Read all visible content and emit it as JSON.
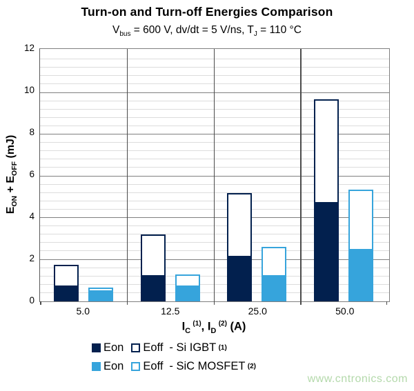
{
  "title": "Turn-on and Turn-off Energies Comparison",
  "subtitle": {
    "p1": "V",
    "sub1": "bus",
    "p2": " = 600 V, dv/dt = 5 V/ns, T",
    "sub2": "J",
    "p3": " = 110 °C"
  },
  "y_axis": {
    "label_parts": {
      "e1": "E",
      "sub1": "ON",
      "plus": " + E",
      "sub2": "OFF",
      "unit": " (mJ)"
    },
    "tick_labels": [
      "0",
      "2",
      "4",
      "6",
      "8",
      "10",
      "12"
    ]
  },
  "x_axis": {
    "label_parts": {
      "i1": "I",
      "sub1": "C",
      "sup1": "(1)",
      "mid": ", I",
      "sub2": "D",
      "sup2": "(2)",
      "unit": " (A)"
    },
    "tick_labels": [
      "5.0",
      "12.5",
      "25.0",
      "50.0"
    ]
  },
  "chart_data": {
    "type": "bar",
    "subtype": "stacked-grouped",
    "categories": [
      5.0,
      12.5,
      25.0,
      50.0
    ],
    "ylim": [
      0,
      12
    ],
    "major_step": 2,
    "minor_step": 0.4,
    "grid": "horizontal-major-minor, vertical category separators",
    "legend_position": "bottom-left, two rows",
    "series": [
      {
        "name": "Eon - Si IGBT",
        "stack": "si-igbt",
        "style": "solid",
        "color": "#02204e",
        "values": [
          0.7,
          1.2,
          2.1,
          4.7
        ]
      },
      {
        "name": "Eoff - Si IGBT",
        "stack": "si-igbt",
        "style": "outline",
        "color": "#02204e",
        "values": [
          1.05,
          2.0,
          3.1,
          5.0
        ]
      },
      {
        "name": "Eon - SiC MOSFET",
        "stack": "sic-mosfet",
        "style": "solid",
        "color": "#36a4dc",
        "values": [
          0.45,
          0.7,
          1.2,
          2.45
        ]
      },
      {
        "name": "Eoff - SiC MOSFET",
        "stack": "sic-mosfet",
        "style": "outline",
        "color": "#36a4dc",
        "values": [
          0.2,
          0.6,
          1.4,
          2.9
        ]
      }
    ],
    "stack_totals": {
      "si-igbt": [
        1.75,
        3.2,
        5.2,
        9.7
      ],
      "sic-mosfet": [
        0.65,
        1.3,
        2.6,
        5.35
      ]
    }
  },
  "legend": {
    "rows": [
      {
        "eon_label": "Eon",
        "eoff_label": "Eoff",
        "series_label": "- Si IGBT",
        "sup": "(1)",
        "color": "#02204e"
      },
      {
        "eon_label": "Eon",
        "eoff_label": "Eoff",
        "series_label": "- SiC MOSFET",
        "sup": "(2)",
        "color": "#36a4dc"
      }
    ]
  },
  "watermark": "www.cntronics.com",
  "colors": {
    "si_igbt": "#02204e",
    "sic_mosfet": "#36a4dc",
    "gridline_minor": "#dcdcdc",
    "gridline_major": "#7f7f7f",
    "separator": "#4a4a4a",
    "watermark": "#b4d9ab"
  }
}
